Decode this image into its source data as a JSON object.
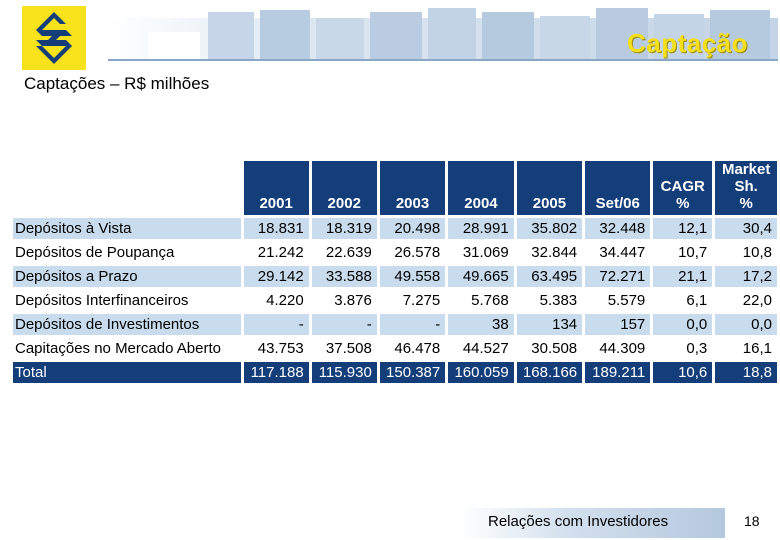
{
  "header": {
    "title": "Captação"
  },
  "subtitle": "Captações – R$ milhões",
  "table": {
    "columns": [
      "2001",
      "2002",
      "2003",
      "2004",
      "2005",
      "Set/06",
      "CAGR %",
      "Market Sh. %"
    ],
    "rows": [
      {
        "label": "Depósitos à Vista",
        "values": [
          "18.831",
          "18.319",
          "20.498",
          "28.991",
          "35.802",
          "32.448",
          "12,1",
          "30,4"
        ]
      },
      {
        "label": "Depósitos de Poupança",
        "values": [
          "21.242",
          "22.639",
          "26.578",
          "31.069",
          "32.844",
          "34.447",
          "10,7",
          "10,8"
        ]
      },
      {
        "label": "Depósitos a Prazo",
        "values": [
          "29.142",
          "33.588",
          "49.558",
          "49.665",
          "63.495",
          "72.271",
          "21,1",
          "17,2"
        ]
      },
      {
        "label": "Depósitos Interfinanceiros",
        "values": [
          "4.220",
          "3.876",
          "7.275",
          "5.768",
          "5.383",
          "5.579",
          "6,1",
          "22,0"
        ]
      },
      {
        "label": "Depósitos de Investimentos",
        "values": [
          "-",
          "-",
          "-",
          "38",
          "134",
          "157",
          "0,0",
          "0,0"
        ]
      },
      {
        "label": "Capitações no Mercado Aberto",
        "values": [
          "43.753",
          "37.508",
          "46.478",
          "44.527",
          "30.508",
          "44.309",
          "0,3",
          "16,1"
        ]
      }
    ],
    "total": {
      "label": "Total",
      "values": [
        "117.188",
        "115.930",
        "150.387",
        "160.059",
        "168.166",
        "189.211",
        "10,6",
        "18,8"
      ]
    }
  },
  "footer": {
    "text": "Relações com Investidores",
    "page": "18"
  }
}
